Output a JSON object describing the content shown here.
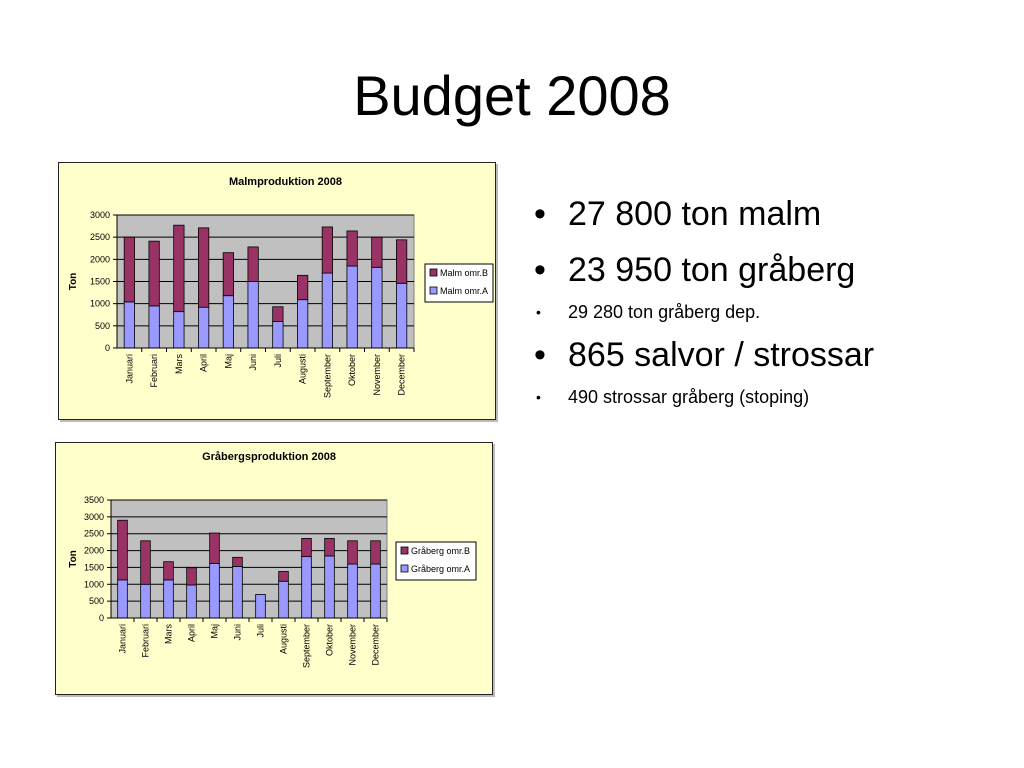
{
  "slide": {
    "title": "Budget 2008",
    "bullets": [
      {
        "text": "27 800 ton malm",
        "level": "big"
      },
      {
        "text": "23 950 ton gråberg",
        "level": "big"
      },
      {
        "text": "29 280 ton gråberg dep.",
        "level": "small"
      },
      {
        "text": "865 salvor / strossar",
        "level": "big"
      },
      {
        "text": "490 strossar gråberg (stoping)",
        "level": "small"
      }
    ],
    "bullet_symbol": "•"
  },
  "chart_data": [
    {
      "type": "bar",
      "stacked": true,
      "title": "Malmproduktion 2008",
      "xlabel": "",
      "ylabel": "Ton",
      "ylim": [
        0,
        3000
      ],
      "yticks": [
        0,
        500,
        1000,
        1500,
        2000,
        2500,
        3000
      ],
      "grid": true,
      "legend": "right",
      "categories": [
        "Januari",
        "Februari",
        "Mars",
        "April",
        "Maj",
        "Juni",
        "Juli",
        "Augusti",
        "September",
        "Oktober",
        "November",
        "December"
      ],
      "series": [
        {
          "name": "Malm omr.A",
          "color": "#9999ff",
          "values": [
            1040,
            950,
            820,
            920,
            1180,
            1500,
            600,
            1090,
            1690,
            1850,
            1820,
            1460
          ]
        },
        {
          "name": "Malm omr.B",
          "color": "#993366",
          "values": [
            1460,
            1460,
            1950,
            1790,
            970,
            780,
            330,
            550,
            1040,
            790,
            680,
            980
          ]
        }
      ]
    },
    {
      "type": "bar",
      "stacked": true,
      "title": "Gråbergsproduktion 2008",
      "xlabel": "",
      "ylabel": "Ton",
      "ylim": [
        0,
        3500
      ],
      "yticks": [
        0,
        500,
        1000,
        1500,
        2000,
        2500,
        3000,
        3500
      ],
      "grid": true,
      "legend": "right",
      "categories": [
        "Januari",
        "Februari",
        "Mars",
        "April",
        "Maj",
        "Juni",
        "Juli",
        "Augusti",
        "September",
        "Oktober",
        "November",
        "December"
      ],
      "series": [
        {
          "name": "Gråberg omr.A",
          "color": "#9999ff",
          "values": [
            1130,
            1000,
            1130,
            980,
            1620,
            1530,
            700,
            1090,
            1820,
            1840,
            1600,
            1600
          ]
        },
        {
          "name": "Gråberg omr.B",
          "color": "#993366",
          "values": [
            1770,
            1290,
            540,
            510,
            900,
            270,
            0,
            290,
            540,
            520,
            690,
            690
          ]
        }
      ]
    }
  ]
}
